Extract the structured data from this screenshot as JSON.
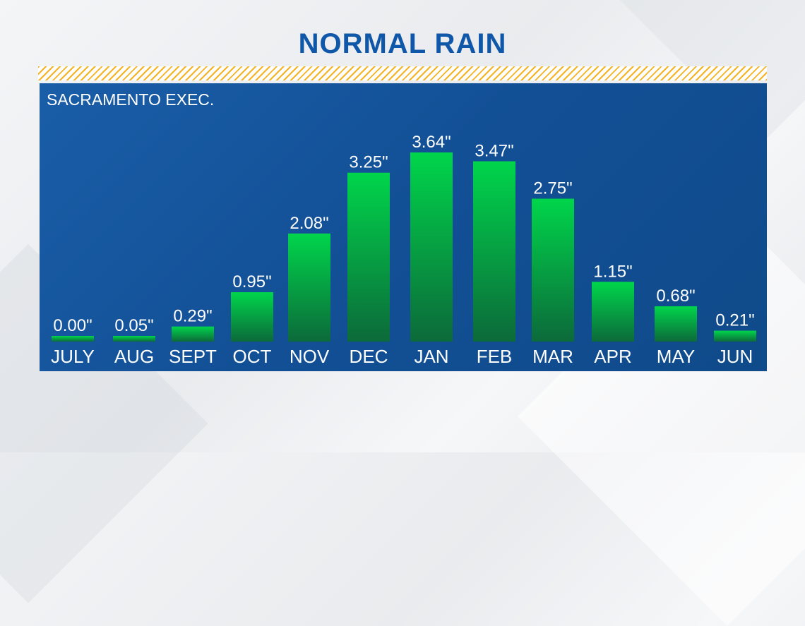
{
  "title": "NORMAL RAIN",
  "station": "SACRAMENTO EXEC.",
  "colors": {
    "title": "#0f57a8",
    "panel": "#1a5ea8",
    "bar_top": "#00d54b",
    "bar_bottom": "#0c6a3a",
    "stripe": "#f5b321"
  },
  "chart_data": {
    "type": "bar",
    "title": "NORMAL RAIN",
    "subtitle": "SACRAMENTO EXEC.",
    "categories": [
      "JULY",
      "AUG",
      "SEPT",
      "OCT",
      "NOV",
      "DEC",
      "JAN",
      "FEB",
      "MAR",
      "APR",
      "MAY",
      "JUN"
    ],
    "values": [
      0.0,
      0.05,
      0.29,
      0.95,
      2.08,
      3.25,
      3.64,
      3.47,
      2.75,
      1.15,
      0.68,
      0.21
    ],
    "value_labels": [
      "0.00\"",
      "0.05\"",
      "0.29\"",
      "0.95\"",
      "2.08\"",
      "3.25\"",
      "3.64\"",
      "3.47\"",
      "2.75\"",
      "1.15\"",
      "0.68\"",
      "0.21\""
    ],
    "xlabel": "",
    "ylabel": "",
    "grid": false
  }
}
